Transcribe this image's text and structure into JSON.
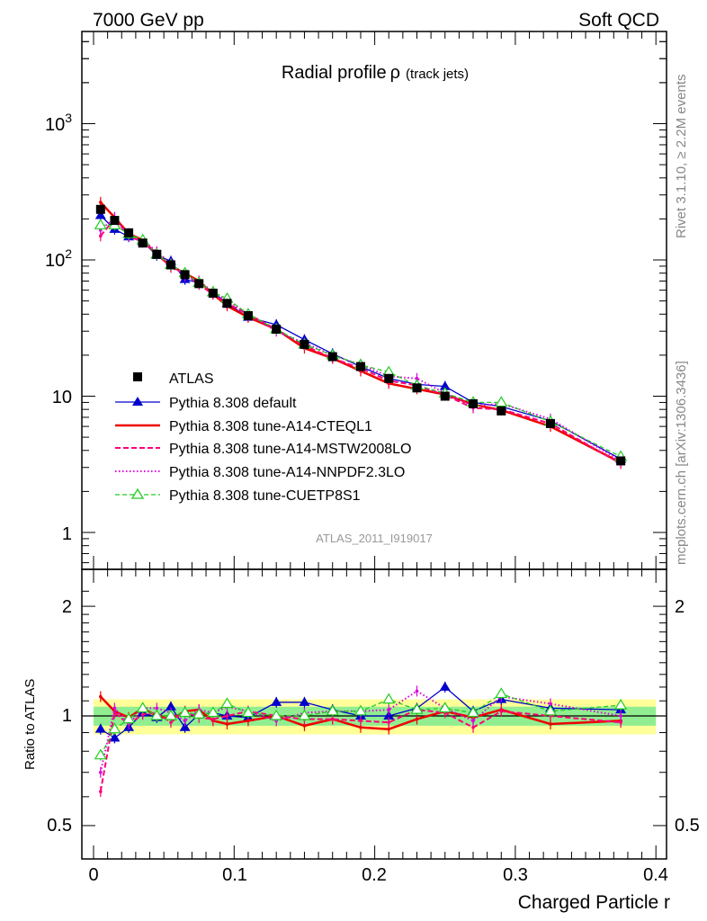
{
  "header": {
    "left": "7000 GeV pp",
    "right": "Soft QCD"
  },
  "side_text": {
    "rivet": "Rivet 3.1.10, ≥ 2.2M events",
    "mcplots": "mcplots.cern.ch [arXiv:1306.3436]"
  },
  "colors": {
    "data": "#000000",
    "default": "#0000cc",
    "cteql1": "#ee0000",
    "mstw": "#ff0077",
    "nnpdf": "#dd00dd",
    "cuetp8s1": "#22cc22",
    "band_inner": "#90ee90",
    "band_outer": "#ffff99"
  },
  "chart_data": [
    {
      "type": "line",
      "title": "Radial profile",
      "title_symbol": "ρ",
      "title_suffix": "(track jets)",
      "watermark": "ATLAS_2011_I919017",
      "yscale": "log",
      "ylim": [
        0.55,
        5000
      ],
      "xlim": [
        -0.02,
        0.4
      ],
      "ytick_labels": [
        "1",
        "10",
        "10^2",
        "10^3"
      ],
      "legend": [
        "ATLAS",
        "Pythia 8.308 default",
        "Pythia 8.308 tune-A14-CTEQL1",
        "Pythia 8.308 tune-A14-MSTW2008LO",
        "Pythia 8.308 tune-A14-NNPDF2.3LO",
        "Pythia 8.308 tune-CUETP8S1"
      ],
      "x": [
        0.005,
        0.015,
        0.025,
        0.035,
        0.045,
        0.055,
        0.065,
        0.075,
        0.085,
        0.095,
        0.11,
        0.13,
        0.15,
        0.17,
        0.19,
        0.21,
        0.23,
        0.25,
        0.27,
        0.29,
        0.325,
        0.375
      ],
      "series": [
        {
          "name": "ATLAS",
          "key": "data",
          "values": [
            235,
            195,
            158,
            133,
            110,
            92,
            78,
            67,
            57,
            48,
            39,
            31,
            24,
            19.5,
            16.5,
            13.5,
            11.5,
            10,
            8.8,
            7.8,
            6.3,
            3.35
          ]
        },
        {
          "name": "Pythia 8.308 default",
          "key": "default",
          "values": [
            212,
            168,
            148,
            136,
            108,
            98,
            72,
            68,
            58,
            48,
            38,
            33.5,
            26,
            20.5,
            16.5,
            13.5,
            12.2,
            11.8,
            9,
            8.4,
            6.6,
            3.45
          ]
        },
        {
          "name": "Pythia 8.308 tune-A14-CTEQL1",
          "key": "cteql1",
          "values": [
            265,
            205,
            156,
            140,
            110,
            90,
            80,
            70,
            56,
            46,
            38,
            31,
            22.5,
            19,
            15.3,
            12.4,
            11.3,
            10.3,
            8.7,
            7.9,
            6.0,
            3.25
          ]
        },
        {
          "name": "Pythia 8.308 tune-A14-MSTW2008LO",
          "key": "mstw",
          "values": [
            150,
            200,
            150,
            135,
            112,
            88,
            80,
            66,
            56,
            48,
            40,
            31,
            23.5,
            19,
            16,
            13,
            12,
            10.2,
            8.2,
            8,
            6.3,
            3.2
          ]
        },
        {
          "name": "Pythia 8.308 tune-A14-NNPDF2.3LO",
          "key": "nnpdf",
          "values": [
            165,
            205,
            150,
            140,
            115,
            94,
            76,
            70,
            58,
            51,
            40,
            30,
            24.5,
            20,
            17,
            14,
            13.5,
            10.5,
            8.5,
            8.8,
            6.8,
            3.35
          ]
        },
        {
          "name": "Pythia 8.308 tune-CUETP8S1",
          "key": "cuetp8s1",
          "values": [
            180,
            180,
            155,
            140,
            110,
            92,
            80,
            68,
            58,
            52,
            40,
            31,
            24,
            20,
            17,
            15,
            12,
            10.5,
            9,
            9,
            6.5,
            3.6
          ]
        }
      ]
    },
    {
      "type": "line",
      "ylabel": "Ratio to ATLAS",
      "xlabel": "Charged Particle r",
      "ylim": [
        0.4,
        2.3
      ],
      "xlim": [
        -0.02,
        0.4
      ],
      "ytick_labels": [
        "0.5",
        "1",
        "2"
      ],
      "xtick_labels": [
        "0",
        "0.1",
        "0.2",
        "0.3",
        "0.4"
      ],
      "reference": 1,
      "band_inner": [
        0.94,
        1.06
      ],
      "band_outer": [
        0.89,
        1.11
      ],
      "x": [
        0.005,
        0.015,
        0.025,
        0.035,
        0.045,
        0.055,
        0.065,
        0.075,
        0.085,
        0.095,
        0.11,
        0.13,
        0.15,
        0.17,
        0.19,
        0.21,
        0.23,
        0.25,
        0.27,
        0.29,
        0.325,
        0.375
      ],
      "series": [
        {
          "name": "Pythia 8.308 default",
          "key": "default",
          "values": [
            0.92,
            0.87,
            0.93,
            1.02,
            0.99,
            1.06,
            0.93,
            1.01,
            1.02,
            1.0,
            0.99,
            1.09,
            1.09,
            1.04,
            1.0,
            1.0,
            1.05,
            1.2,
            1.03,
            1.11,
            1.05,
            1.04
          ]
        },
        {
          "name": "Pythia 8.308 tune-A14-CTEQL1",
          "key": "cteql1",
          "values": [
            1.13,
            1.03,
            0.99,
            1.05,
            1.0,
            0.98,
            1.03,
            1.04,
            0.97,
            0.95,
            0.97,
            1.0,
            0.94,
            0.98,
            0.93,
            0.92,
            0.98,
            1.03,
            0.99,
            1.04,
            0.95,
            0.97
          ]
        },
        {
          "name": "Pythia 8.308 tune-A14-MSTW2008LO",
          "key": "mstw",
          "values": [
            0.62,
            1.02,
            0.95,
            1.01,
            1.02,
            0.96,
            1.03,
            0.99,
            0.98,
            1.0,
            1.03,
            1.0,
            0.98,
            0.98,
            0.97,
            0.96,
            1.04,
            1.02,
            0.93,
            1.03,
            1.0,
            0.96
          ]
        },
        {
          "name": "Pythia 8.308 tune-A14-NNPDF2.3LO",
          "key": "nnpdf",
          "values": [
            0.7,
            1.05,
            0.95,
            1.05,
            1.05,
            1.02,
            0.97,
            1.04,
            1.02,
            1.06,
            1.03,
            0.97,
            1.02,
            1.03,
            1.03,
            1.04,
            1.17,
            1.05,
            0.97,
            1.13,
            1.08,
            1.0
          ]
        },
        {
          "name": "Pythia 8.308 tune-CUETP8S1",
          "key": "cuetp8s1",
          "values": [
            0.78,
            0.92,
            0.98,
            1.05,
            1.0,
            1.0,
            1.02,
            1.01,
            1.02,
            1.08,
            1.02,
            1.0,
            1.0,
            1.03,
            1.03,
            1.11,
            1.04,
            1.05,
            1.02,
            1.15,
            1.03,
            1.07
          ]
        }
      ]
    }
  ]
}
